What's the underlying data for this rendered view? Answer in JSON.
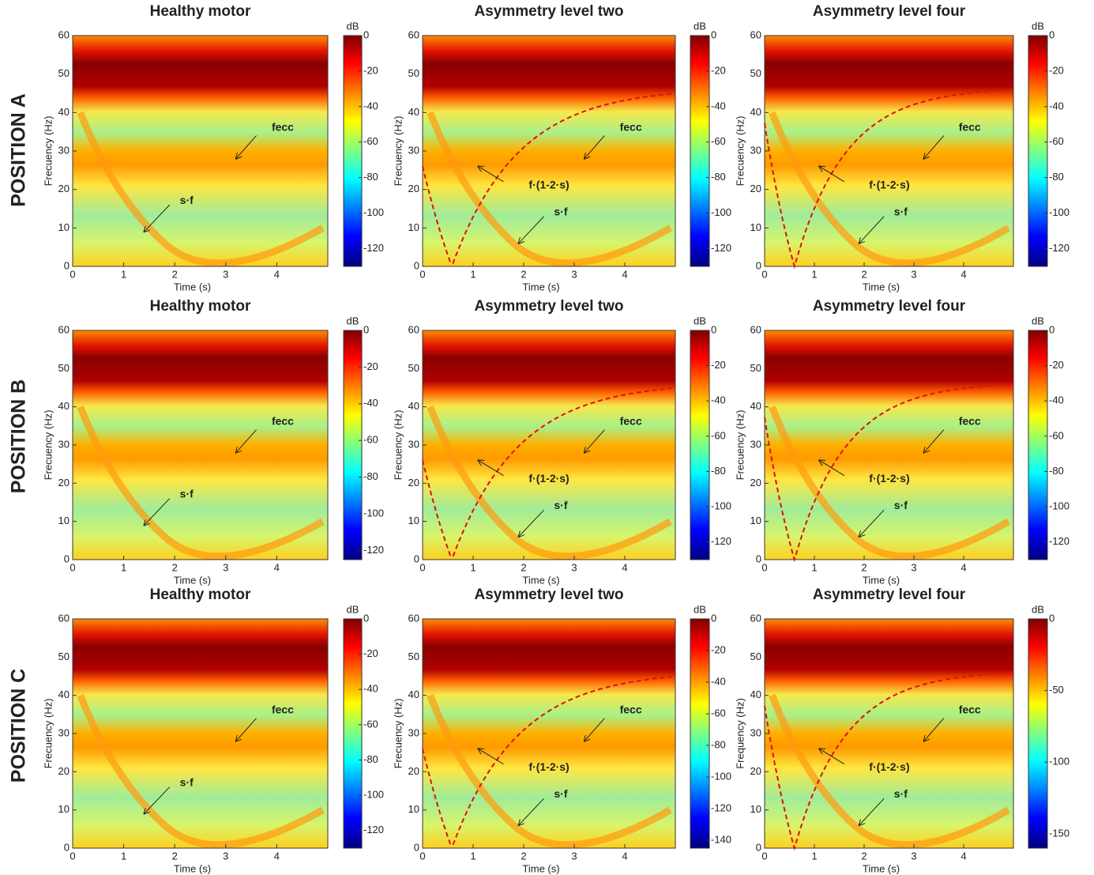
{
  "row_labels": [
    "POSITION A",
    "POSITION B",
    "POSITION C"
  ],
  "chart_data": [
    {
      "type": "spectrogram",
      "title": "Healthy motor",
      "xlabel": "Time (s)",
      "ylabel": "Frecuency (Hz)",
      "xlim": [
        0,
        5
      ],
      "xticks": [
        0,
        1,
        2,
        3,
        4
      ],
      "ylim": [
        0,
        60
      ],
      "yticks": [
        0,
        10,
        20,
        30,
        40,
        50,
        60
      ],
      "colorbar_label": "dB",
      "clim": [
        -130,
        0
      ],
      "cticks": [
        0,
        -20,
        -40,
        -60,
        -80,
        -100,
        -120
      ],
      "annotations": [
        "fecc",
        "s·f"
      ]
    },
    {
      "type": "spectrogram",
      "title": "Asymmetry level two",
      "xlabel": "Time (s)",
      "ylabel": "Frecuency (Hz)",
      "xlim": [
        0,
        5
      ],
      "xticks": [
        0,
        1,
        2,
        3,
        4
      ],
      "ylim": [
        0,
        60
      ],
      "yticks": [
        0,
        10,
        20,
        30,
        40,
        50,
        60
      ],
      "colorbar_label": "dB",
      "clim": [
        -130,
        0
      ],
      "cticks": [
        0,
        -20,
        -40,
        -60,
        -80,
        -100,
        -120
      ],
      "annotations": [
        "fecc",
        "f·(1-2·s)",
        "s·f"
      ]
    },
    {
      "type": "spectrogram",
      "title": "Asymmetry level four",
      "xlabel": "Time (s)",
      "ylabel": "Frecuency (Hz)",
      "xlim": [
        0,
        5
      ],
      "xticks": [
        0,
        1,
        2,
        3,
        4
      ],
      "ylim": [
        0,
        60
      ],
      "yticks": [
        0,
        10,
        20,
        30,
        40,
        50,
        60
      ],
      "colorbar_label": "dB",
      "clim": [
        -130,
        0
      ],
      "cticks": [
        0,
        -20,
        -40,
        -60,
        -80,
        -100,
        -120
      ],
      "annotations": [
        "fecc",
        "f·(1-2·s)",
        "s·f"
      ]
    },
    {
      "type": "spectrogram",
      "title": "Healthy motor",
      "xlabel": "Time (s)",
      "ylabel": "Frecuency (Hz)",
      "xlim": [
        0,
        5
      ],
      "xticks": [
        0,
        1,
        2,
        3,
        4
      ],
      "ylim": [
        0,
        60
      ],
      "yticks": [
        0,
        10,
        20,
        30,
        40,
        50,
        60
      ],
      "colorbar_label": "dB",
      "clim": [
        -125,
        0
      ],
      "cticks": [
        0,
        -20,
        -40,
        -60,
        -80,
        -100,
        -120
      ],
      "annotations": [
        "fecc",
        "s·f"
      ]
    },
    {
      "type": "spectrogram",
      "title": "Asymmetry level two",
      "xlabel": "Time (s)",
      "ylabel": "Frecuency (Hz)",
      "xlim": [
        0,
        5
      ],
      "xticks": [
        0,
        1,
        2,
        3,
        4
      ],
      "ylim": [
        0,
        60
      ],
      "yticks": [
        0,
        10,
        20,
        30,
        40,
        50,
        60
      ],
      "colorbar_label": "dB",
      "clim": [
        -130,
        0
      ],
      "cticks": [
        0,
        -20,
        -40,
        -60,
        -80,
        -100,
        -120
      ],
      "annotations": [
        "fecc",
        "f·(1-2·s)",
        "s·f"
      ]
    },
    {
      "type": "spectrogram",
      "title": "Asymmetry level four",
      "xlabel": "Time (s)",
      "ylabel": "Frecuency (Hz)",
      "xlim": [
        0,
        5
      ],
      "xticks": [
        0,
        1,
        2,
        3,
        4
      ],
      "ylim": [
        0,
        60
      ],
      "yticks": [
        0,
        10,
        20,
        30,
        40,
        50,
        60
      ],
      "colorbar_label": "dB",
      "clim": [
        -130,
        0
      ],
      "cticks": [
        0,
        -20,
        -40,
        -60,
        -80,
        -100,
        -120
      ],
      "annotations": [
        "fecc",
        "f·(1-2·s)",
        "s·f"
      ]
    },
    {
      "type": "spectrogram",
      "title": "Healthy motor",
      "xlabel": "Time (s)",
      "ylabel": "Frecuency (Hz)",
      "xlim": [
        0,
        5
      ],
      "xticks": [
        0,
        1,
        2,
        3,
        4
      ],
      "ylim": [
        0,
        60
      ],
      "yticks": [
        0,
        10,
        20,
        30,
        40,
        50,
        60
      ],
      "colorbar_label": "dB",
      "clim": [
        -130,
        0
      ],
      "cticks": [
        0,
        -20,
        -40,
        -60,
        -80,
        -100,
        -120
      ],
      "annotations": [
        "fecc",
        "s·f"
      ]
    },
    {
      "type": "spectrogram",
      "title": "Asymmetry level two",
      "xlabel": "Time (s)",
      "ylabel": "Frecuency (Hz)",
      "xlim": [
        0,
        5
      ],
      "xticks": [
        0,
        1,
        2,
        3,
        4
      ],
      "ylim": [
        0,
        60
      ],
      "yticks": [
        0,
        10,
        20,
        30,
        40,
        50,
        60
      ],
      "colorbar_label": "dB",
      "clim": [
        -145,
        0
      ],
      "cticks": [
        0,
        -20,
        -40,
        -60,
        -80,
        -100,
        -120,
        -140
      ],
      "annotations": [
        "fecc",
        "f·(1-2·s)",
        "s·f"
      ]
    },
    {
      "type": "spectrogram",
      "title": "Asymmetry level four",
      "xlabel": "Time (s)",
      "ylabel": "Frequency (Hz)",
      "xlim": [
        0,
        5
      ],
      "xticks": [
        0,
        1,
        2,
        3,
        4
      ],
      "ylim": [
        0,
        60
      ],
      "yticks": [
        0,
        10,
        20,
        30,
        40,
        50,
        60
      ],
      "colorbar_label": "dB",
      "clim": [
        -160,
        0
      ],
      "cticks": [
        0,
        -50,
        -100,
        -150
      ],
      "annotations": [
        "fecc",
        "f·(1-2·s)",
        "s·f"
      ]
    }
  ]
}
